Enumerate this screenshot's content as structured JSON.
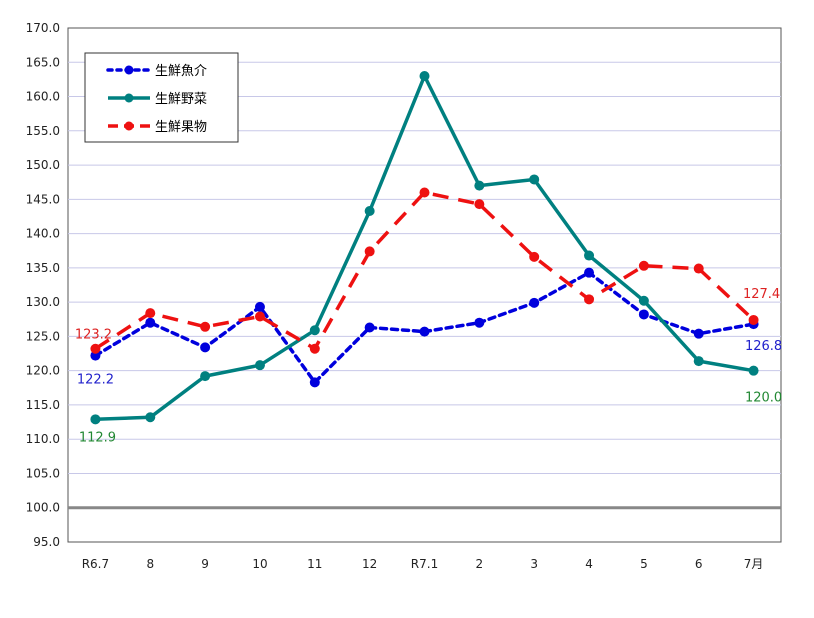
{
  "chart_data": {
    "type": "line",
    "categories": [
      "R6.7",
      "8",
      "9",
      "10",
      "11",
      "12",
      "R7.1",
      "2",
      "3",
      "4",
      "5",
      "6",
      "7月"
    ],
    "ylim": [
      95,
      170
    ],
    "ytick_step": 5,
    "yticks": [
      "95.0",
      "100.0",
      "105.0",
      "110.0",
      "115.0",
      "120.0",
      "125.0",
      "130.0",
      "135.0",
      "140.0",
      "145.0",
      "150.0",
      "155.0",
      "160.0",
      "165.0",
      "170.0"
    ],
    "baseline": 100,
    "grid": true,
    "legend_position": "top-left",
    "series": [
      {
        "name": "生鮮魚介",
        "color": "#0000dd",
        "dash": "dotted",
        "values": [
          122.2,
          127.0,
          123.4,
          129.3,
          118.3,
          126.3,
          125.7,
          127.0,
          129.9,
          134.3,
          128.2,
          125.4,
          126.8
        ]
      },
      {
        "name": "生鮮野菜",
        "color": "#008080",
        "dash": "solid",
        "values": [
          112.9,
          113.2,
          119.2,
          120.8,
          125.9,
          143.3,
          163.0,
          147.0,
          147.9,
          136.8,
          130.2,
          121.4,
          120.0
        ]
      },
      {
        "name": "生鮮果物",
        "color": "#ee1111",
        "dash": "dashed",
        "values": [
          123.2,
          128.4,
          126.4,
          127.9,
          123.2,
          137.4,
          146.0,
          144.3,
          136.6,
          130.4,
          135.3,
          134.9,
          127.4
        ]
      }
    ],
    "data_labels": [
      {
        "series": 0,
        "index": 0,
        "text": "122.2",
        "color": "#2222cc"
      },
      {
        "series": 1,
        "index": 0,
        "text": "112.9",
        "color": "#228833"
      },
      {
        "series": 2,
        "index": 0,
        "text": "123.2",
        "color": "#dd2222"
      },
      {
        "series": 0,
        "index": 12,
        "text": "126.8",
        "color": "#2222cc"
      },
      {
        "series": 1,
        "index": 12,
        "text": "120.0",
        "color": "#228833"
      },
      {
        "series": 2,
        "index": 12,
        "text": "127.4",
        "color": "#dd2222"
      }
    ]
  }
}
